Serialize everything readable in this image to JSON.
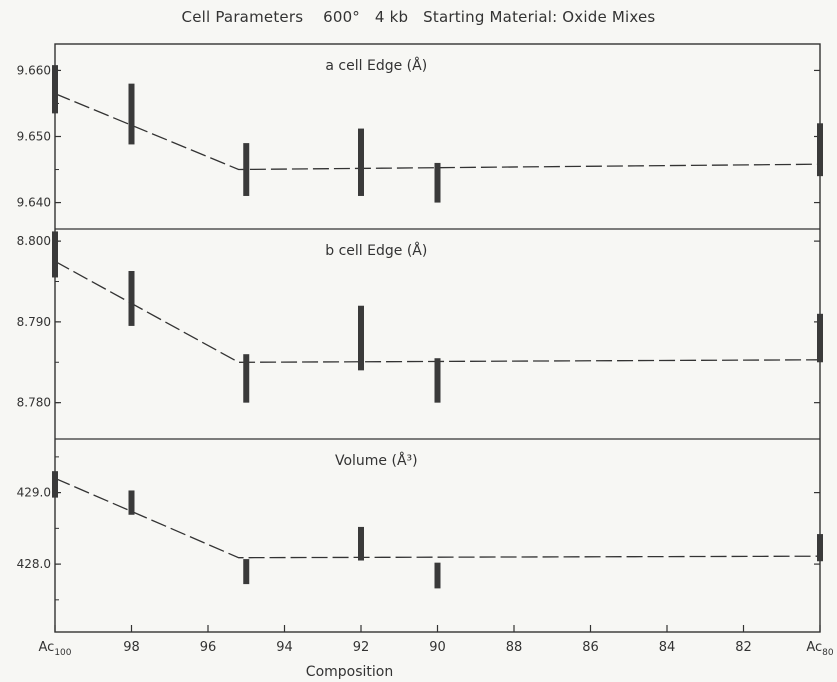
{
  "title": "Cell Parameters    600°   4 kb   Starting Material: Oxide Mixes",
  "colors": {
    "ink": "#333333",
    "bar": "#3a3a3a",
    "paper": "#f7f7f4"
  },
  "chart_data": [
    {
      "type": "scatter",
      "panel": "a",
      "label": "a cell Edge (Å)",
      "yticks": [
        "9.660",
        "9.650",
        "9.640"
      ],
      "ytick_values": [
        9.66,
        9.65,
        9.64
      ],
      "ylim": [
        9.636,
        9.664
      ],
      "points": [
        {
          "x": 100,
          "y_low": 9.6535,
          "y_high": 9.6608
        },
        {
          "x": 98,
          "y_low": 9.6488,
          "y_high": 9.658
        },
        {
          "x": 95,
          "y_low": 9.641,
          "y_high": 9.649
        },
        {
          "x": 92,
          "y_low": 9.641,
          "y_high": 9.6512
        },
        {
          "x": 90,
          "y_low": 9.64,
          "y_high": 9.646
        },
        {
          "x": 80,
          "y_low": 9.644,
          "y_high": 9.652
        }
      ],
      "trend": [
        [
          100,
          9.6565
        ],
        [
          95.2,
          9.645
        ],
        [
          80,
          9.6458
        ]
      ]
    },
    {
      "type": "scatter",
      "panel": "b",
      "label": "b cell Edge (Å)",
      "yticks": [
        "8.800",
        "8.790",
        "8.780"
      ],
      "ytick_values": [
        8.8,
        8.79,
        8.78
      ],
      "ylim": [
        8.7755,
        8.8015
      ],
      "points": [
        {
          "x": 100,
          "y_low": 8.7955,
          "y_high": 8.8012
        },
        {
          "x": 98,
          "y_low": 8.7895,
          "y_high": 8.7963
        },
        {
          "x": 95,
          "y_low": 8.78,
          "y_high": 8.786
        },
        {
          "x": 92,
          "y_low": 8.784,
          "y_high": 8.792
        },
        {
          "x": 90,
          "y_low": 8.78,
          "y_high": 8.7855
        },
        {
          "x": 80,
          "y_low": 8.785,
          "y_high": 8.791
        }
      ],
      "trend": [
        [
          100,
          8.7975
        ],
        [
          95.2,
          8.785
        ],
        [
          80,
          8.7853
        ]
      ]
    },
    {
      "type": "scatter",
      "panel": "volume",
      "label": "Volume (Å³)",
      "yticks": [
        "429.0",
        "428.0"
      ],
      "ytick_values": [
        429.0,
        428.0
      ],
      "ylim": [
        427.05,
        429.75
      ],
      "points": [
        {
          "x": 100,
          "y_low": 428.93,
          "y_high": 429.3
        },
        {
          "x": 98,
          "y_low": 428.69,
          "y_high": 429.03
        },
        {
          "x": 95,
          "y_low": 427.72,
          "y_high": 428.07
        },
        {
          "x": 92,
          "y_low": 428.05,
          "y_high": 428.52
        },
        {
          "x": 90,
          "y_low": 427.66,
          "y_high": 428.02
        },
        {
          "x": 80,
          "y_low": 428.04,
          "y_high": 428.42
        }
      ],
      "trend": [
        [
          100,
          429.2
        ],
        [
          95.2,
          428.09
        ],
        [
          80,
          428.11
        ]
      ]
    }
  ],
  "x_axis": {
    "label": "Composition",
    "xlim": [
      100,
      80
    ],
    "ticks": [
      {
        "value": 100,
        "text": "Ac",
        "sub": "100"
      },
      {
        "value": 98,
        "text": "98"
      },
      {
        "value": 96,
        "text": "96"
      },
      {
        "value": 94,
        "text": "94"
      },
      {
        "value": 92,
        "text": "92"
      },
      {
        "value": 90,
        "text": "90"
      },
      {
        "value": 88,
        "text": "88"
      },
      {
        "value": 86,
        "text": "86"
      },
      {
        "value": 84,
        "text": "84"
      },
      {
        "value": 82,
        "text": "82"
      },
      {
        "value": 80,
        "text": "Ac",
        "sub": "80"
      }
    ]
  }
}
